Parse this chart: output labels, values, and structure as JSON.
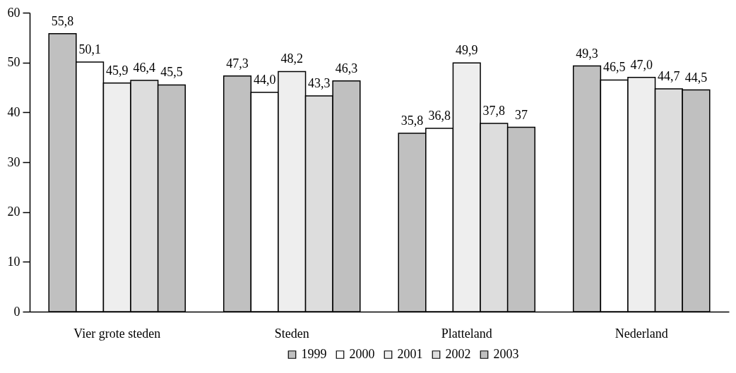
{
  "chart_data": {
    "type": "bar",
    "categories": [
      "Vier grote steden",
      "Steden",
      "Platteland",
      "Nederland"
    ],
    "series": [
      {
        "name": "1999",
        "color": "#c0c0c0",
        "values": [
          55.8,
          47.3,
          35.8,
          49.3
        ],
        "value_labels": [
          "55,8",
          "47,3",
          "35,8",
          "49,3"
        ]
      },
      {
        "name": "2000",
        "color": "#ffffff",
        "values": [
          50.1,
          44.0,
          36.8,
          46.5
        ],
        "value_labels": [
          "50,1",
          "44,0",
          "36,8",
          "46,5"
        ]
      },
      {
        "name": "2001",
        "color": "#eeeeee",
        "values": [
          45.9,
          48.2,
          49.9,
          47.0
        ],
        "value_labels": [
          "45,9",
          "48,2",
          "49,9",
          "47,0"
        ]
      },
      {
        "name": "2002",
        "color": "#dddddd",
        "values": [
          46.4,
          43.3,
          37.8,
          44.7
        ],
        "value_labels": [
          "46,4",
          "43,3",
          "37,8",
          "44,7"
        ]
      },
      {
        "name": "2003",
        "color": "#c0c0c0",
        "values": [
          45.5,
          46.3,
          37,
          44.5
        ],
        "value_labels": [
          "45,5",
          "46,3",
          "37",
          "44,5"
        ]
      }
    ],
    "ylim": [
      0,
      60
    ],
    "yticks": [
      0,
      10,
      20,
      30,
      40,
      50,
      60
    ],
    "legend": "bottom"
  }
}
